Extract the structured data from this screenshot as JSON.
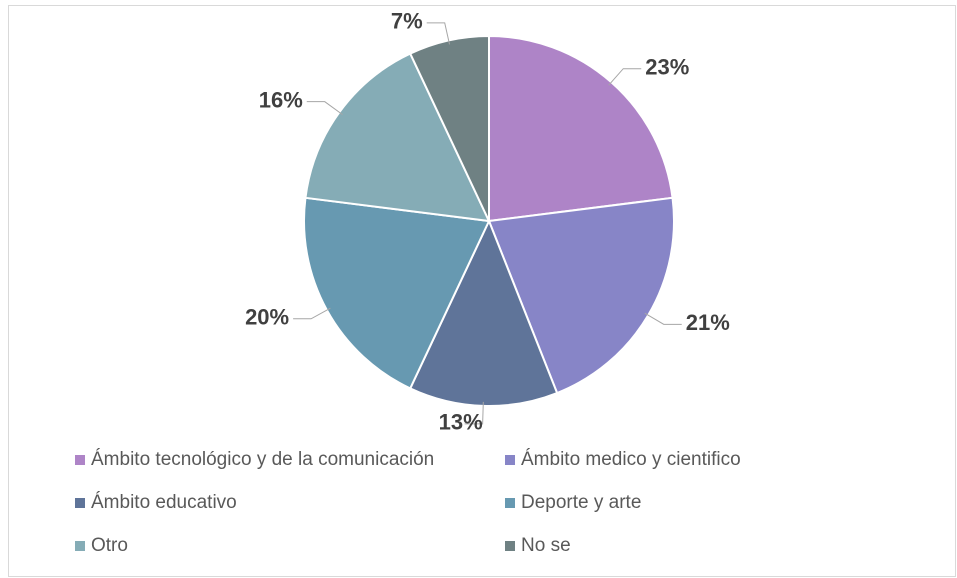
{
  "chart_data": {
    "type": "pie",
    "categories": [
      "Ámbito tecnológico y de la comunicación",
      "Ámbito medico y cientifico",
      "Ámbito educativo",
      "Deporte y arte",
      "Otro",
      "No se"
    ],
    "values": [
      23,
      21,
      13,
      20,
      16,
      7
    ],
    "value_labels": [
      "23%",
      "21%",
      "13%",
      "20%",
      "16%",
      "7%"
    ],
    "colors": [
      "#ae84c7",
      "#8785c7",
      "#5f7499",
      "#6799b1",
      "#85acb6",
      "#6f8183"
    ],
    "legend": "bottom"
  }
}
